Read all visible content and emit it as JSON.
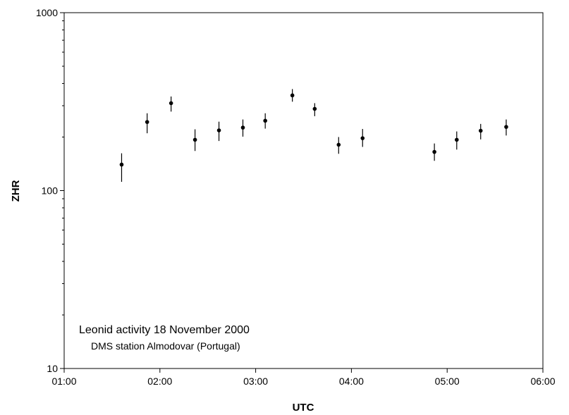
{
  "chart_data": {
    "type": "scatter",
    "title": "",
    "xlabel": "UTC",
    "ylabel": "ZHR",
    "yscale": "log",
    "xlim": [
      "01:00",
      "06:00"
    ],
    "ylim": [
      10,
      1000
    ],
    "grid": false,
    "x_ticks": [
      "01:00",
      "02:00",
      "03:00",
      "04:00",
      "05:00",
      "06:00"
    ],
    "y_ticks": [
      "10",
      "100",
      "1000"
    ],
    "annotations": [
      "Leonid activity 18 November 2000",
      "DMS station Almodovar (Portugal)"
    ],
    "series": [
      {
        "points": [
          {
            "x": "01:36",
            "y": 140,
            "err_low": 112,
            "err_high": 162
          },
          {
            "x": "01:52",
            "y": 243,
            "err_low": 210,
            "err_high": 272
          },
          {
            "x": "02:07",
            "y": 310,
            "err_low": 278,
            "err_high": 338
          },
          {
            "x": "02:22",
            "y": 193,
            "err_low": 167,
            "err_high": 221
          },
          {
            "x": "02:37",
            "y": 218,
            "err_low": 190,
            "err_high": 244
          },
          {
            "x": "02:52",
            "y": 226,
            "err_low": 201,
            "err_high": 251
          },
          {
            "x": "03:06",
            "y": 247,
            "err_low": 223,
            "err_high": 272
          },
          {
            "x": "03:23",
            "y": 343,
            "err_low": 316,
            "err_high": 372
          },
          {
            "x": "03:37",
            "y": 288,
            "err_low": 262,
            "err_high": 310
          },
          {
            "x": "03:52",
            "y": 181,
            "err_low": 161,
            "err_high": 200
          },
          {
            "x": "04:07",
            "y": 197,
            "err_low": 176,
            "err_high": 222
          },
          {
            "x": "04:52",
            "y": 165,
            "err_low": 147,
            "err_high": 184
          },
          {
            "x": "05:06",
            "y": 193,
            "err_low": 170,
            "err_high": 215
          },
          {
            "x": "05:21",
            "y": 217,
            "err_low": 194,
            "err_high": 237
          },
          {
            "x": "05:37",
            "y": 228,
            "err_low": 204,
            "err_high": 251
          }
        ]
      }
    ]
  }
}
